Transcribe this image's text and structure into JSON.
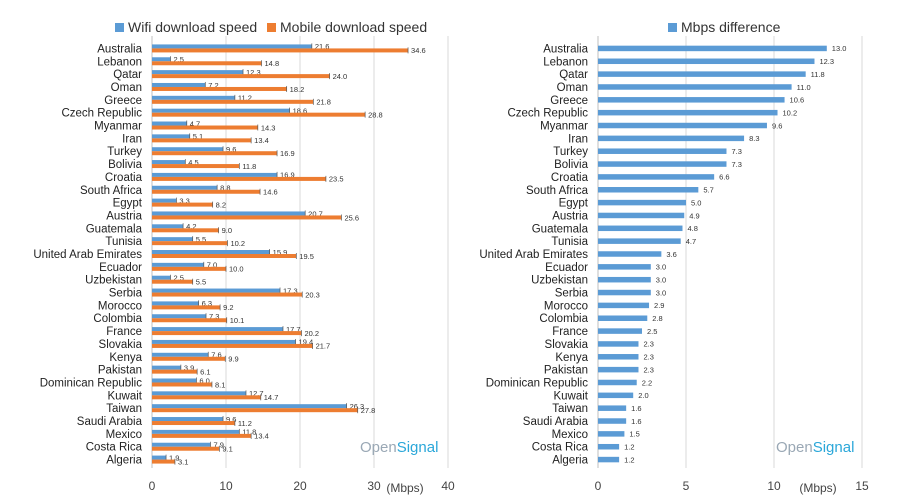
{
  "chart_data": [
    {
      "type": "bar",
      "orientation": "horizontal",
      "categories": [
        "Australia",
        "Lebanon",
        "Qatar",
        "Oman",
        "Greece",
        "Czech Republic",
        "Myanmar",
        "Iran",
        "Turkey",
        "Bolivia",
        "Croatia",
        "South Africa",
        "Egypt",
        "Austria",
        "Guatemala",
        "Tunisia",
        "United Arab Emirates",
        "Ecuador",
        "Uzbekistan",
        "Serbia",
        "Morocco",
        "Colombia",
        "France",
        "Slovakia",
        "Kenya",
        "Pakistan",
        "Dominican Republic",
        "Kuwait",
        "Taiwan",
        "Saudi Arabia",
        "Mexico",
        "Costa Rica",
        "Algeria"
      ],
      "series": [
        {
          "name": "Wifi download speed",
          "color": "#5b9bd5",
          "values": [
            21.6,
            2.5,
            12.3,
            7.2,
            11.2,
            18.6,
            4.7,
            5.1,
            9.6,
            4.5,
            16.9,
            8.8,
            3.3,
            20.7,
            4.2,
            5.5,
            15.9,
            7.0,
            2.5,
            17.3,
            6.3,
            7.3,
            17.7,
            19.4,
            7.6,
            3.9,
            6.0,
            12.7,
            26.3,
            9.6,
            11.8,
            7.9,
            1.9
          ]
        },
        {
          "name": "Mobile download speed",
          "color": "#ed7d31",
          "values": [
            34.6,
            14.8,
            24.0,
            18.2,
            21.8,
            28.8,
            14.3,
            13.4,
            16.9,
            11.8,
            23.5,
            14.6,
            8.2,
            25.6,
            9.0,
            10.2,
            19.5,
            10.0,
            5.5,
            20.3,
            9.2,
            10.1,
            20.2,
            21.7,
            9.9,
            6.1,
            8.1,
            14.7,
            27.8,
            11.2,
            13.4,
            9.1,
            3.1
          ]
        }
      ],
      "xlim": [
        0,
        40
      ],
      "xticks": [
        "0",
        "10",
        "20",
        "30",
        "40"
      ],
      "unit": "(Mbps)",
      "legend": "top",
      "grid": true
    },
    {
      "type": "bar",
      "orientation": "horizontal",
      "categories": [
        "Australia",
        "Lebanon",
        "Qatar",
        "Oman",
        "Greece",
        "Czech Republic",
        "Myanmar",
        "Iran",
        "Turkey",
        "Bolivia",
        "Croatia",
        "South Africa",
        "Egypt",
        "Austria",
        "Guatemala",
        "Tunisia",
        "United Arab Emirates",
        "Ecuador",
        "Uzbekistan",
        "Serbia",
        "Morocco",
        "Colombia",
        "France",
        "Slovakia",
        "Kenya",
        "Pakistan",
        "Dominican Republic",
        "Kuwait",
        "Taiwan",
        "Saudi Arabia",
        "Mexico",
        "Costa Rica",
        "Algeria"
      ],
      "series": [
        {
          "name": "Mbps difference",
          "color": "#5b9bd5",
          "values": [
            13.0,
            12.3,
            11.8,
            11.0,
            10.6,
            10.2,
            9.6,
            8.3,
            7.3,
            7.3,
            6.6,
            5.7,
            5.0,
            4.9,
            4.8,
            4.7,
            3.6,
            3.0,
            3.0,
            3.0,
            2.9,
            2.8,
            2.5,
            2.3,
            2.3,
            2.3,
            2.2,
            2.0,
            1.6,
            1.6,
            1.5,
            1.2,
            1.2
          ]
        }
      ],
      "xlim": [
        0,
        15
      ],
      "xticks": [
        "0",
        "5",
        "10",
        "15"
      ],
      "unit": "(Mbps)",
      "legend": "top",
      "grid": true
    }
  ],
  "branding": {
    "open": "Open",
    "signal": "Signal"
  }
}
